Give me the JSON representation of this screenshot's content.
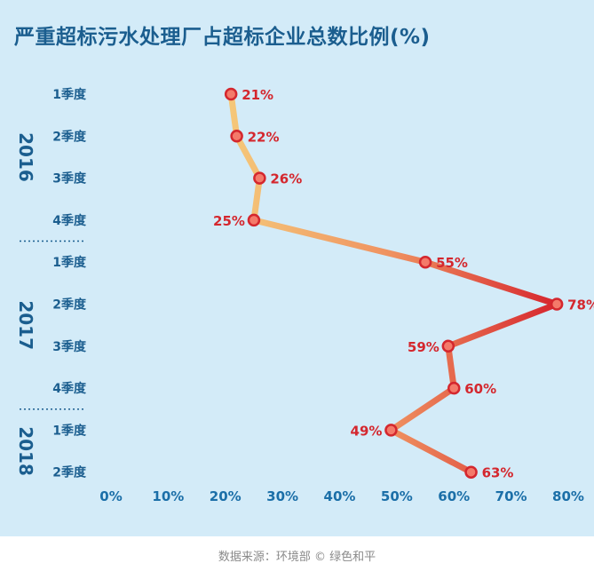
{
  "title": "严重超标污水处理厂占超标企业总数比例(%)",
  "source": "数据来源：环境部 © 绿色和平",
  "colors": {
    "low": "#f5c97a",
    "mid": "#ef9160",
    "high": "#d7282f",
    "marker_fill": "#f47a6a",
    "marker_stroke": "#d4272e"
  },
  "chart_data": {
    "type": "line",
    "orientation": "horizontal",
    "title": "严重超标污水处理厂占超标企业总数比例(%)",
    "xlim": [
      0,
      80
    ],
    "x_ticks": [
      "0%",
      "10%",
      "20%",
      "30%",
      "40%",
      "50%",
      "60%",
      "70%",
      "80%"
    ],
    "groups": [
      {
        "year": "2016",
        "start": 0,
        "count": 4
      },
      {
        "year": "2017",
        "start": 4,
        "count": 4
      },
      {
        "year": "2018",
        "start": 8,
        "count": 2
      }
    ],
    "categories": [
      "1季度",
      "2季度",
      "3季度",
      "4季度",
      "1季度",
      "2季度",
      "3季度",
      "4季度",
      "1季度",
      "2季度"
    ],
    "values": [
      21,
      22,
      26,
      25,
      55,
      78,
      59,
      60,
      49,
      63
    ],
    "value_labels": [
      "21%",
      "22%",
      "26%",
      "25%",
      "55%",
      "78%",
      "59%",
      "60%",
      "49%",
      "63%"
    ],
    "label_side": [
      "right",
      "right",
      "right",
      "left",
      "right",
      "right",
      "left",
      "right",
      "left",
      "right"
    ],
    "grid": false,
    "legend": "none"
  }
}
